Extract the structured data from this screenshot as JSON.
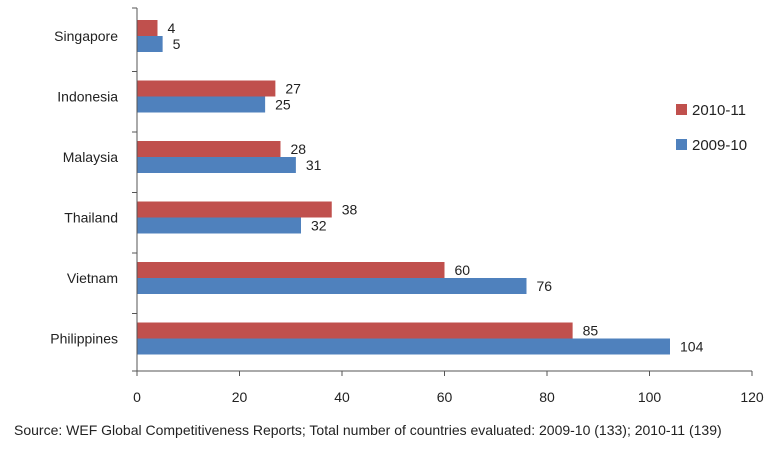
{
  "chart_data": {
    "type": "bar",
    "orientation": "horizontal",
    "categories": [
      "Singapore",
      "Indonesia",
      "Malaysia",
      "Thailand",
      "Vietnam",
      "Philippines"
    ],
    "series": [
      {
        "name": "2010-11",
        "color": "#c0504d",
        "values": [
          4,
          27,
          28,
          38,
          60,
          85
        ]
      },
      {
        "name": "2009-10",
        "color": "#4f81bd",
        "values": [
          5,
          25,
          31,
          32,
          76,
          104
        ]
      }
    ],
    "xlim": [
      0,
      120
    ],
    "xticks": [
      0,
      20,
      40,
      60,
      80,
      100,
      120
    ],
    "grid": false,
    "legend_position": "right"
  },
  "source_note": "Source: WEF Global Competitiveness Reports; Total number of countries evaluated: 2009-10 (133); 2010-11 (139)"
}
